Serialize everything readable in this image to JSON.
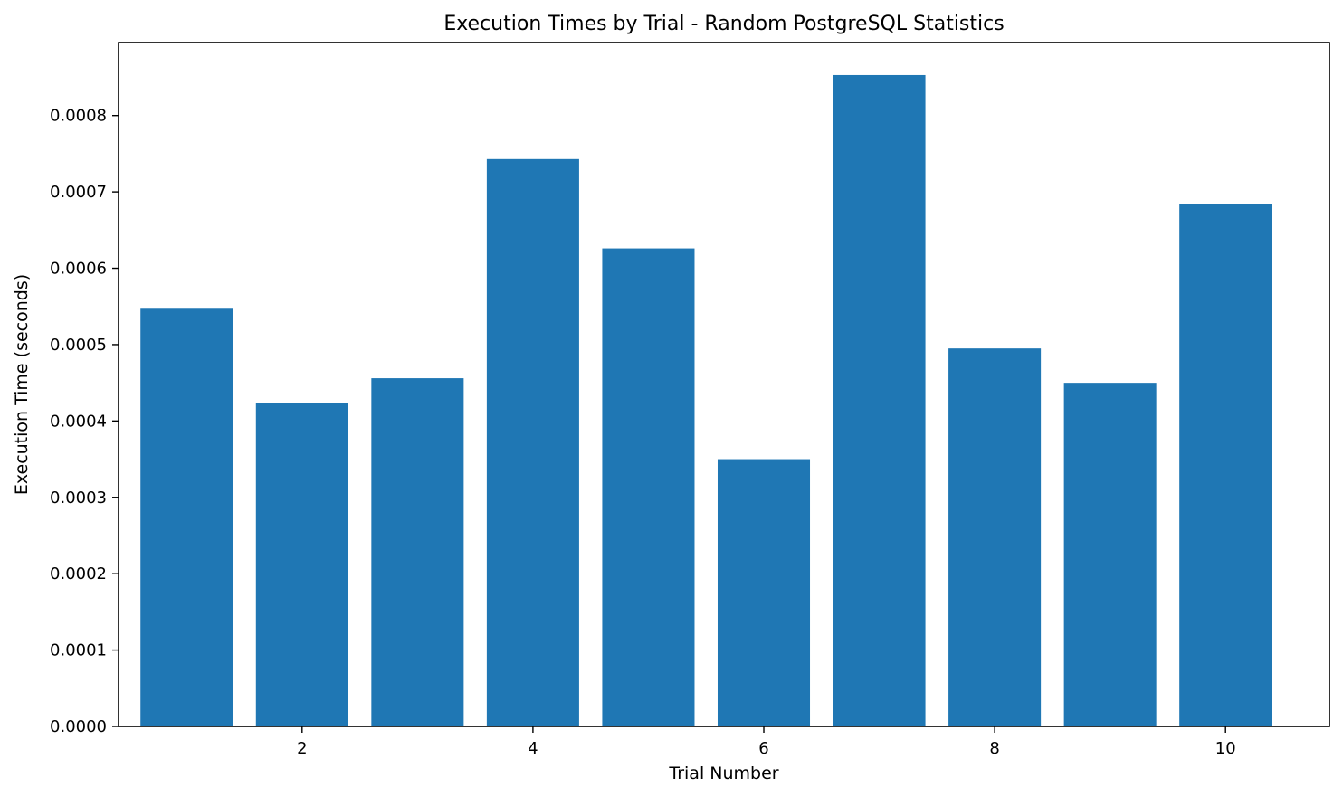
{
  "chart_data": {
    "type": "bar",
    "title": "Execution Times by Trial - Random PostgreSQL Statistics",
    "xlabel": "Trial Number",
    "ylabel": "Execution Time (seconds)",
    "x": [
      1,
      2,
      3,
      4,
      5,
      6,
      7,
      8,
      9,
      10
    ],
    "values": [
      0.000547,
      0.000423,
      0.000456,
      0.000743,
      0.000626,
      0.00035,
      0.000853,
      0.000495,
      0.00045,
      0.000684
    ],
    "xlim": [
      0.41,
      10.9
    ],
    "ylim": [
      0,
      0.0008956
    ],
    "x_ticks": [
      2,
      4,
      6,
      8,
      10
    ],
    "x_tick_labels": [
      "2",
      "4",
      "6",
      "8",
      "10"
    ],
    "y_ticks": [
      0,
      0.0001,
      0.0002,
      0.0003,
      0.0004,
      0.0005,
      0.0006,
      0.0007,
      0.0008
    ],
    "y_tick_labels": [
      "0.0000",
      "0.0001",
      "0.0002",
      "0.0003",
      "0.0004",
      "0.0005",
      "0.0006",
      "0.0007",
      "0.0008"
    ],
    "bar_width": 0.8,
    "bar_color": "#1f77b4",
    "grid": false,
    "legend": "none"
  }
}
